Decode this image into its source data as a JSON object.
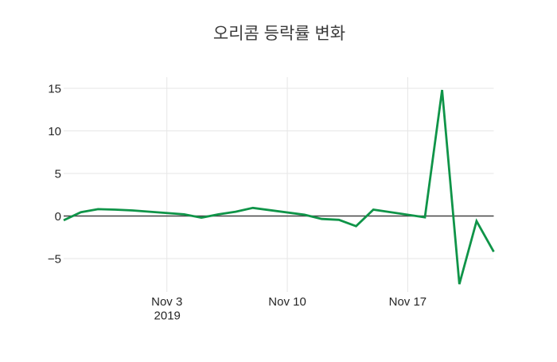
{
  "title": "오리콤 등락률 변화",
  "colors": {
    "line": "#0f9448",
    "grid": "#e6e6e6",
    "zeroline": "#444444",
    "tick_text": "#262626",
    "title_text": "#3a3a3a",
    "background": "#ffffff"
  },
  "chart_data": {
    "type": "line",
    "title": "오리콤 등락률 변화",
    "x": [
      "2019-10-28",
      "2019-10-29",
      "2019-10-30",
      "2019-10-31",
      "2019-11-01",
      "2019-11-04",
      "2019-11-05",
      "2019-11-06",
      "2019-11-07",
      "2019-11-08",
      "2019-11-11",
      "2019-11-12",
      "2019-11-13",
      "2019-11-14",
      "2019-11-15",
      "2019-11-18",
      "2019-11-19",
      "2019-11-20",
      "2019-11-21",
      "2019-11-22"
    ],
    "values": [
      -0.5,
      0.45,
      0.8,
      0.75,
      0.65,
      0.2,
      -0.2,
      0.2,
      0.5,
      0.95,
      0.15,
      -0.35,
      -0.45,
      -1.2,
      0.75,
      -0.15,
      14.8,
      -8.0,
      -0.6,
      -4.2
    ],
    "xlabel": "",
    "ylabel": "",
    "x_range": [
      "2019-10-28",
      "2019-11-22"
    ],
    "y_ticks": [
      15,
      10,
      5,
      0,
      -5
    ],
    "y_tick_labels": [
      "15",
      "10",
      "5",
      "0",
      "−5"
    ],
    "x_ticks": [
      {
        "date": "2019-11-03",
        "label": "Nov 3",
        "sublabel": "2019"
      },
      {
        "date": "2019-11-10",
        "label": "Nov 10",
        "sublabel": ""
      },
      {
        "date": "2019-11-17",
        "label": "Nov 17",
        "sublabel": ""
      }
    ],
    "grid": true,
    "legend": false
  }
}
